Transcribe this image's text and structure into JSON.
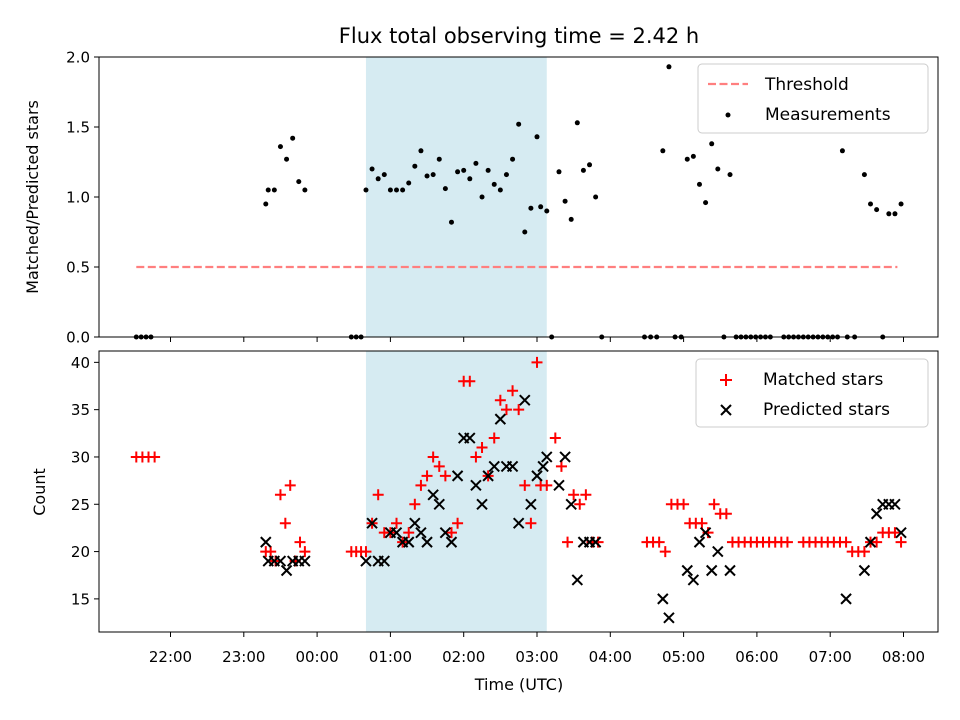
{
  "chart_data": [
    {
      "type": "scatter",
      "title": "Flux total observing time = 2.42 h",
      "xlabel": "",
      "ylabel": "Matched/Predicted stars",
      "ylim": [
        0,
        2.0
      ],
      "yticks": [
        "0.0",
        "0.5",
        "1.0",
        "1.5",
        "2.0"
      ],
      "grid": false,
      "legend_position": "upper right",
      "highlight_span": [
        "00:40",
        "03:08"
      ],
      "highlight_color": "#add8e6",
      "threshold": {
        "name": "Threshold",
        "y": 0.5,
        "x_start": "21:32",
        "x_end": "07:55",
        "color": "#ff7f7f",
        "style": "dashed"
      },
      "series": [
        {
          "name": "Measurements",
          "color": "#000000",
          "points": [
            [
              "21:32",
              0
            ],
            [
              "21:36",
              0
            ],
            [
              "21:40",
              0
            ],
            [
              "21:44",
              0
            ],
            [
              "23:18",
              0.95
            ],
            [
              "23:20",
              1.05
            ],
            [
              "23:25",
              1.05
            ],
            [
              "23:30",
              1.36
            ],
            [
              "23:35",
              1.27
            ],
            [
              "23:40",
              1.42
            ],
            [
              "23:45",
              1.11
            ],
            [
              "23:50",
              1.05
            ],
            [
              "00:28",
              0
            ],
            [
              "00:32",
              0
            ],
            [
              "00:36",
              0
            ],
            [
              "00:40",
              1.05
            ],
            [
              "00:45",
              1.2
            ],
            [
              "00:50",
              1.13
            ],
            [
              "00:55",
              1.16
            ],
            [
              "01:00",
              1.05
            ],
            [
              "01:05",
              1.05
            ],
            [
              "01:10",
              1.05
            ],
            [
              "01:15",
              1.1
            ],
            [
              "01:20",
              1.22
            ],
            [
              "01:25",
              1.33
            ],
            [
              "01:30",
              1.15
            ],
            [
              "01:35",
              1.16
            ],
            [
              "01:40",
              1.27
            ],
            [
              "01:45",
              1.06
            ],
            [
              "01:50",
              0.82
            ],
            [
              "01:55",
              1.18
            ],
            [
              "02:00",
              1.19
            ],
            [
              "02:05",
              1.13
            ],
            [
              "02:10",
              1.24
            ],
            [
              "02:15",
              1.0
            ],
            [
              "02:20",
              1.19
            ],
            [
              "02:25",
              1.09
            ],
            [
              "02:30",
              1.05
            ],
            [
              "02:35",
              1.16
            ],
            [
              "02:40",
              1.27
            ],
            [
              "02:45",
              1.52
            ],
            [
              "02:50",
              0.75
            ],
            [
              "02:55",
              0.92
            ],
            [
              "03:00",
              1.43
            ],
            [
              "03:03",
              0.93
            ],
            [
              "03:08",
              0.9
            ],
            [
              "03:12",
              0
            ],
            [
              "03:18",
              1.18
            ],
            [
              "03:23",
              0.97
            ],
            [
              "03:28",
              0.84
            ],
            [
              "03:33",
              1.53
            ],
            [
              "03:38",
              1.19
            ],
            [
              "03:43",
              1.23
            ],
            [
              "03:48",
              1.0
            ],
            [
              "03:53",
              0
            ],
            [
              "04:28",
              0
            ],
            [
              "04:33",
              0
            ],
            [
              "04:38",
              0
            ],
            [
              "04:43",
              1.33
            ],
            [
              "04:48",
              1.93
            ],
            [
              "04:53",
              0
            ],
            [
              "04:58",
              0
            ],
            [
              "05:03",
              1.27
            ],
            [
              "05:08",
              1.29
            ],
            [
              "05:13",
              1.09
            ],
            [
              "05:18",
              0.96
            ],
            [
              "05:23",
              1.38
            ],
            [
              "05:28",
              1.2
            ],
            [
              "05:33",
              0
            ],
            [
              "05:38",
              1.16
            ],
            [
              "05:43",
              0
            ],
            [
              "05:47",
              0
            ],
            [
              "05:51",
              0
            ],
            [
              "05:55",
              0
            ],
            [
              "05:59",
              0
            ],
            [
              "06:03",
              0
            ],
            [
              "06:07",
              0
            ],
            [
              "06:11",
              0
            ],
            [
              "06:22",
              0
            ],
            [
              "06:26",
              0
            ],
            [
              "06:30",
              0
            ],
            [
              "06:34",
              0
            ],
            [
              "06:38",
              0
            ],
            [
              "06:42",
              0
            ],
            [
              "06:46",
              0
            ],
            [
              "06:50",
              0
            ],
            [
              "06:54",
              0
            ],
            [
              "06:58",
              0
            ],
            [
              "07:02",
              0
            ],
            [
              "07:06",
              0
            ],
            [
              "07:10",
              1.33
            ],
            [
              "07:14",
              0
            ],
            [
              "07:20",
              0
            ],
            [
              "07:28",
              1.16
            ],
            [
              "07:33",
              0.95
            ],
            [
              "07:38",
              0.91
            ],
            [
              "07:43",
              0
            ],
            [
              "07:48",
              0.88
            ],
            [
              "07:53",
              0.88
            ],
            [
              "07:58",
              0.95
            ]
          ]
        }
      ]
    },
    {
      "type": "scatter",
      "title": "",
      "xlabel": "Time (UTC)",
      "ylabel": "Count",
      "xticks": [
        "22:00",
        "23:00",
        "00:00",
        "01:00",
        "02:00",
        "03:00",
        "04:00",
        "05:00",
        "06:00",
        "07:00",
        "08:00"
      ],
      "ylim": [
        11.5,
        41.2
      ],
      "yticks": [
        "15",
        "20",
        "25",
        "30",
        "35",
        "40"
      ],
      "grid": false,
      "legend_position": "upper right",
      "highlight_span": [
        "00:40",
        "03:08"
      ],
      "highlight_color": "#add8e6",
      "series": [
        {
          "name": "Matched stars",
          "marker": "plus",
          "color": "#ff0000",
          "points": [
            [
              "21:32",
              30
            ],
            [
              "21:37",
              30
            ],
            [
              "21:42",
              30
            ],
            [
              "21:47",
              30
            ],
            [
              "23:18",
              20
            ],
            [
              "23:22",
              20
            ],
            [
              "23:26",
              19
            ],
            [
              "23:30",
              26
            ],
            [
              "23:34",
              23
            ],
            [
              "23:38",
              27
            ],
            [
              "23:42",
              19
            ],
            [
              "23:46",
              21
            ],
            [
              "23:50",
              20
            ],
            [
              "00:28",
              20
            ],
            [
              "00:32",
              20
            ],
            [
              "00:36",
              20
            ],
            [
              "00:40",
              20
            ],
            [
              "00:45",
              23
            ],
            [
              "00:50",
              26
            ],
            [
              "00:55",
              22
            ],
            [
              "01:00",
              22
            ],
            [
              "01:05",
              23
            ],
            [
              "01:10",
              21
            ],
            [
              "01:15",
              22
            ],
            [
              "01:20",
              25
            ],
            [
              "01:25",
              27
            ],
            [
              "01:30",
              28
            ],
            [
              "01:35",
              30
            ],
            [
              "01:40",
              29
            ],
            [
              "01:45",
              28
            ],
            [
              "01:50",
              22
            ],
            [
              "01:55",
              23
            ],
            [
              "02:00",
              38
            ],
            [
              "02:05",
              38
            ],
            [
              "02:10",
              30
            ],
            [
              "02:15",
              31
            ],
            [
              "02:20",
              28
            ],
            [
              "02:25",
              32
            ],
            [
              "02:30",
              36
            ],
            [
              "02:35",
              35
            ],
            [
              "02:40",
              37
            ],
            [
              "02:45",
              35
            ],
            [
              "02:50",
              27
            ],
            [
              "02:55",
              23
            ],
            [
              "03:00",
              40
            ],
            [
              "03:03",
              27
            ],
            [
              "03:08",
              27
            ],
            [
              "03:15",
              32
            ],
            [
              "03:20",
              29
            ],
            [
              "03:25",
              21
            ],
            [
              "03:30",
              26
            ],
            [
              "03:35",
              25
            ],
            [
              "03:40",
              26
            ],
            [
              "03:45",
              21
            ],
            [
              "03:50",
              21
            ],
            [
              "04:30",
              21
            ],
            [
              "04:35",
              21
            ],
            [
              "04:40",
              21
            ],
            [
              "04:45",
              20
            ],
            [
              "04:50",
              25
            ],
            [
              "04:55",
              25
            ],
            [
              "05:00",
              25
            ],
            [
              "05:05",
              23
            ],
            [
              "05:10",
              23
            ],
            [
              "05:15",
              23
            ],
            [
              "05:20",
              22
            ],
            [
              "05:25",
              25
            ],
            [
              "05:30",
              24
            ],
            [
              "05:35",
              24
            ],
            [
              "05:40",
              21
            ],
            [
              "05:45",
              21
            ],
            [
              "05:50",
              21
            ],
            [
              "05:55",
              21
            ],
            [
              "06:00",
              21
            ],
            [
              "06:05",
              21
            ],
            [
              "06:10",
              21
            ],
            [
              "06:15",
              21
            ],
            [
              "06:20",
              21
            ],
            [
              "06:25",
              21
            ],
            [
              "06:38",
              21
            ],
            [
              "06:43",
              21
            ],
            [
              "06:48",
              21
            ],
            [
              "06:53",
              21
            ],
            [
              "06:58",
              21
            ],
            [
              "07:03",
              21
            ],
            [
              "07:08",
              21
            ],
            [
              "07:13",
              21
            ],
            [
              "07:18",
              20
            ],
            [
              "07:23",
              20
            ],
            [
              "07:28",
              20
            ],
            [
              "07:33",
              21
            ],
            [
              "07:38",
              21
            ],
            [
              "07:43",
              22
            ],
            [
              "07:48",
              22
            ],
            [
              "07:53",
              22
            ],
            [
              "07:58",
              21
            ]
          ]
        },
        {
          "name": "Predicted stars",
          "marker": "x",
          "color": "#000000",
          "points": [
            [
              "23:18",
              21
            ],
            [
              "23:20",
              19
            ],
            [
              "23:25",
              19
            ],
            [
              "23:30",
              19
            ],
            [
              "23:35",
              18
            ],
            [
              "23:40",
              19
            ],
            [
              "23:45",
              19
            ],
            [
              "23:50",
              19
            ],
            [
              "00:40",
              19
            ],
            [
              "00:45",
              23
            ],
            [
              "00:50",
              19
            ],
            [
              "00:55",
              19
            ],
            [
              "01:00",
              22
            ],
            [
              "01:05",
              22
            ],
            [
              "01:10",
              21
            ],
            [
              "01:15",
              21
            ],
            [
              "01:20",
              23
            ],
            [
              "01:25",
              22
            ],
            [
              "01:30",
              21
            ],
            [
              "01:35",
              26
            ],
            [
              "01:40",
              25
            ],
            [
              "01:45",
              22
            ],
            [
              "01:50",
              21
            ],
            [
              "01:55",
              28
            ],
            [
              "02:00",
              32
            ],
            [
              "02:05",
              32
            ],
            [
              "02:10",
              27
            ],
            [
              "02:15",
              25
            ],
            [
              "02:20",
              28
            ],
            [
              "02:25",
              29
            ],
            [
              "02:30",
              34
            ],
            [
              "02:35",
              29
            ],
            [
              "02:40",
              29
            ],
            [
              "02:45",
              23
            ],
            [
              "02:50",
              36
            ],
            [
              "02:55",
              25
            ],
            [
              "03:00",
              28
            ],
            [
              "03:05",
              29
            ],
            [
              "03:08",
              30
            ],
            [
              "03:18",
              27
            ],
            [
              "03:23",
              30
            ],
            [
              "03:28",
              25
            ],
            [
              "03:33",
              17
            ],
            [
              "03:38",
              21
            ],
            [
              "03:43",
              21
            ],
            [
              "03:48",
              21
            ],
            [
              "04:43",
              15
            ],
            [
              "04:48",
              13
            ],
            [
              "05:03",
              18
            ],
            [
              "05:08",
              17
            ],
            [
              "05:13",
              21
            ],
            [
              "05:18",
              22
            ],
            [
              "05:23",
              18
            ],
            [
              "05:28",
              20
            ],
            [
              "05:38",
              18
            ],
            [
              "07:13",
              15
            ],
            [
              "07:28",
              18
            ],
            [
              "07:33",
              21
            ],
            [
              "07:38",
              24
            ],
            [
              "07:43",
              25
            ],
            [
              "07:48",
              25
            ],
            [
              "07:53",
              25
            ],
            [
              "07:58",
              22
            ]
          ]
        }
      ]
    }
  ]
}
